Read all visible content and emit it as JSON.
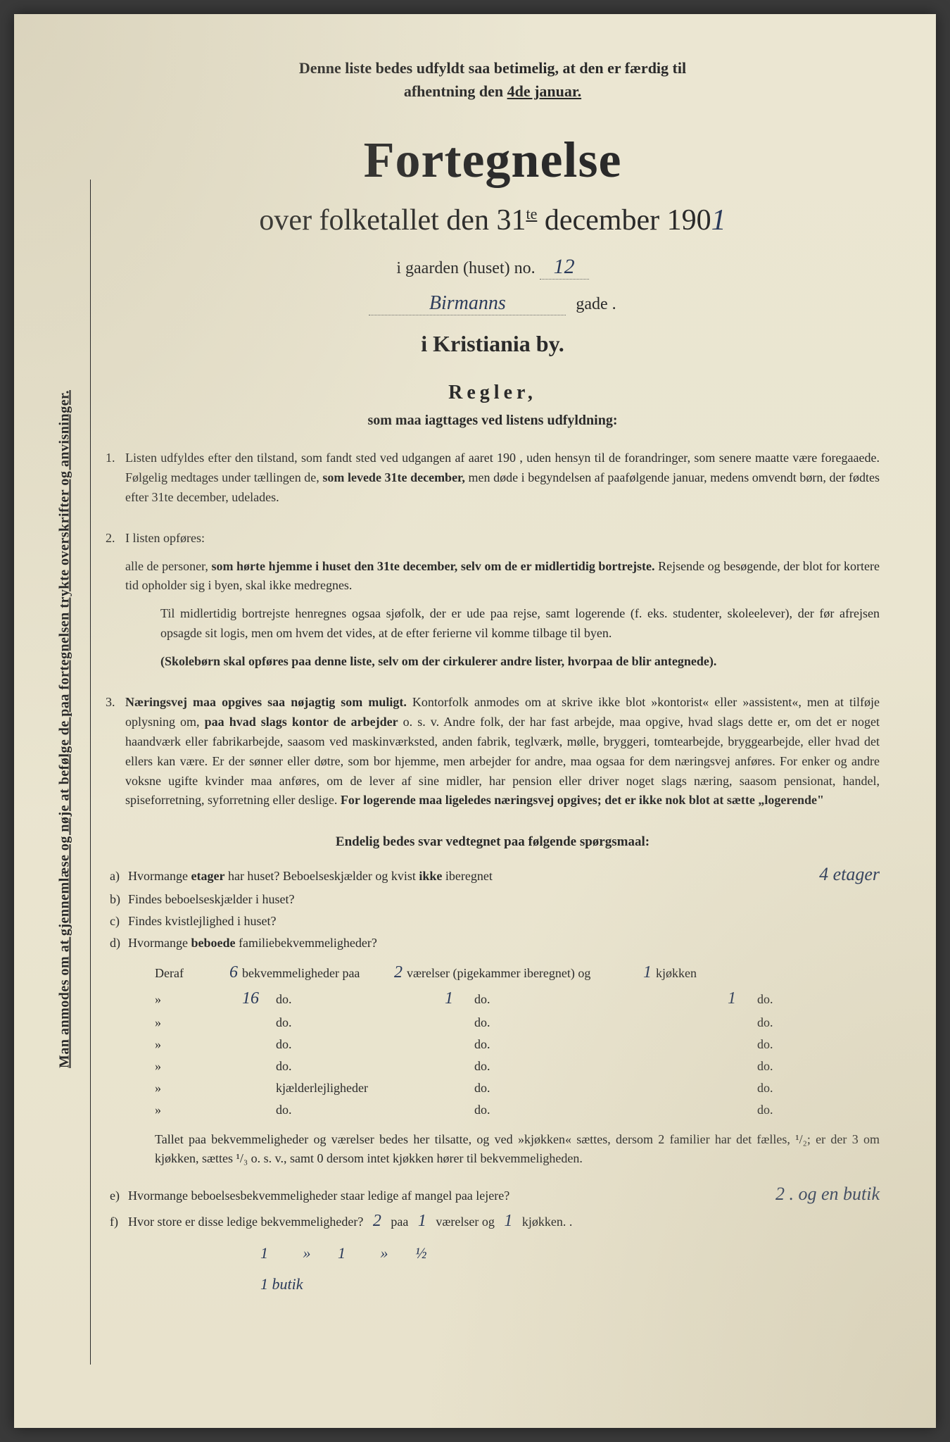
{
  "colors": {
    "paper": "#ebe6d2",
    "ink": "#2a2a2a",
    "handwriting": "#2a3a5a"
  },
  "sidebar": "Man anmodes om at gjennemlæse og nøje at befølge de paa fortegnelsen trykte overskrifter og anvisninger.",
  "topnote_1": "Denne liste bedes udfyldt saa betimelig, at den er færdig til",
  "topnote_2a": "afhentning den ",
  "topnote_2b": "4de januar.",
  "title": "Fortegnelse",
  "subtitle_pre": "over folketallet den 31",
  "subtitle_sup": "te",
  "subtitle_post": " december 190",
  "year_hw": "1",
  "gaarden_label": "i gaarden (huset) no.",
  "gaarden_hw": "12",
  "gade_hw": "Birmanns",
  "gade_label": "gade .",
  "city": "i Kristiania by.",
  "regler_h": "Regler,",
  "regler_sub": "som maa iagttages ved listens udfyldning:",
  "rule1_a": "Listen udfyldes efter den tilstand, som fandt sted ved udgangen af aaret 190   , uden hensyn til de forandringer, som senere maatte være foregaaede. Følgelig medtages under tællingen de, ",
  "rule1_b": "som levede 31te december,",
  "rule1_c": " men døde i begyndelsen af paafølgende januar, medens omvendt børn, der fødtes efter 31te december, udelades.",
  "rule2_intro": "I listen opføres:",
  "rule2_p1a": "alle de personer, ",
  "rule2_p1b": "som hørte hjemme i huset den 31te december, selv om de er midlertidig bortrejste.",
  "rule2_p1c": " Rejsende og besøgende, der blot for kortere tid opholder sig i byen, skal ikke medregnes.",
  "rule2_p2": "Til midlertidig bortrejste henregnes ogsaa sjøfolk, der er ude paa rejse, samt logerende (f. eks. studenter, skoleelever), der før afrejsen opsagde sit logis, men om hvem det vides, at de efter ferierne vil komme tilbage til byen.",
  "rule2_p3": "(Skolebørn skal opføres paa denne liste, selv om der cirkulerer andre lister, hvorpaa de blir antegnede).",
  "rule3_a": "Næringsvej maa opgives saa nøjagtig som muligt.",
  "rule3_b": " Kontorfolk anmodes om at skrive ikke blot »kontorist« eller »assistent«, men at tilføje oplysning om, ",
  "rule3_c": "paa hvad slags kontor de arbejder",
  "rule3_d": " o. s. v. Andre folk, der har fast arbejde, maa opgive, hvad slags dette er, om det er noget haandværk eller fabrikarbejde, saasom ved maskinværksted, anden fabrik, teglværk, mølle, bryggeri, tomtearbejde, bryggearbejde, eller hvad det ellers kan være. Er der sønner eller døtre, som bor hjemme, men arbejder for andre, maa ogsaa for dem næringsvej anføres. For enker og andre voksne ugifte kvinder maa anføres, om de lever af sine midler, har pension eller driver noget slags næring, saasom pensionat, handel, spiseforretning, syforretning eller deslige. ",
  "rule3_e": "For logerende maa ligeledes næringsvej opgives; det er ikke nok blot at sætte „logerende\"",
  "endelig": "Endelig bedes svar vedtegnet paa følgende spørgsmaal:",
  "qa": {
    "label": "a)",
    "text_1": "Hvormange ",
    "text_b": "etager",
    "text_2": " har huset?  Beboelseskjælder og kvist ",
    "text_b2": "ikke",
    "text_3": " iberegnet",
    "ans": "4 etager"
  },
  "qb": {
    "label": "b)",
    "text": "Findes beboelseskjælder i huset?"
  },
  "qc": {
    "label": "c)",
    "text": "Findes kvistlejlighed i huset?"
  },
  "qd": {
    "label": "d)",
    "text_1": "Hvormange ",
    "text_b": "beboede",
    "text_2": " familiebekvemmeligheder?"
  },
  "deraf": {
    "header": {
      "c1": "Deraf",
      "hw1": "6",
      "c2": "bekvemmeligheder paa",
      "hw2": "2",
      "c4": "værelser (pigekammer iberegnet) og",
      "hw3": "1",
      "c6": "kjøkken"
    },
    "rows": [
      {
        "c1": "»",
        "hw1": "16",
        "c2": "do.",
        "hw2": "1",
        "c4": "do.",
        "hw3": "1",
        "c6": "do."
      },
      {
        "c1": "»",
        "hw1": "",
        "c2": "do.",
        "hw2": "",
        "c4": "do.",
        "hw3": "",
        "c6": "do."
      },
      {
        "c1": "»",
        "hw1": "",
        "c2": "do.",
        "hw2": "",
        "c4": "do.",
        "hw3": "",
        "c6": "do."
      },
      {
        "c1": "»",
        "hw1": "",
        "c2": "do.",
        "hw2": "",
        "c4": "do.",
        "hw3": "",
        "c6": "do."
      },
      {
        "c1": "»",
        "hw1": "",
        "c2": "kjælderlejligheder",
        "hw2": "",
        "c4": "do.",
        "hw3": "",
        "c6": "do."
      },
      {
        "c1": "»",
        "hw1": "",
        "c2": "do.",
        "hw2": "",
        "c4": "do.",
        "hw3": "",
        "c6": "do."
      }
    ]
  },
  "tallet": "Tallet paa bekvemmeligheder og værelser bedes her tilsatte, og ved »kjøkken« sættes, dersom 2 familier har det fælles, ¹/₂; er der 3 om kjøkken, sættes ¹/₃ o. s. v., samt 0 dersom intet kjøkken hører til bekvemmeligheden.",
  "qe": {
    "label": "e)",
    "text": "Hvormange beboelsesbekvemmeligheder staar ledige af mangel paa lejere?",
    "ans": "2 . og en butik"
  },
  "qf": {
    "label": "f)",
    "text_1": "Hvor store er disse ledige bekvemmeligheder?",
    "hw1": "2",
    "mid1": "paa",
    "hw2": "1",
    "mid2": "værelser og",
    "hw3": "1",
    "mid3": "kjøkken. ."
  },
  "bottom": {
    "l1_a": "1",
    "l1_b": "»",
    "l1_c": "1",
    "l1_d": "»",
    "l1_e": "½",
    "l2": "1 butik"
  }
}
